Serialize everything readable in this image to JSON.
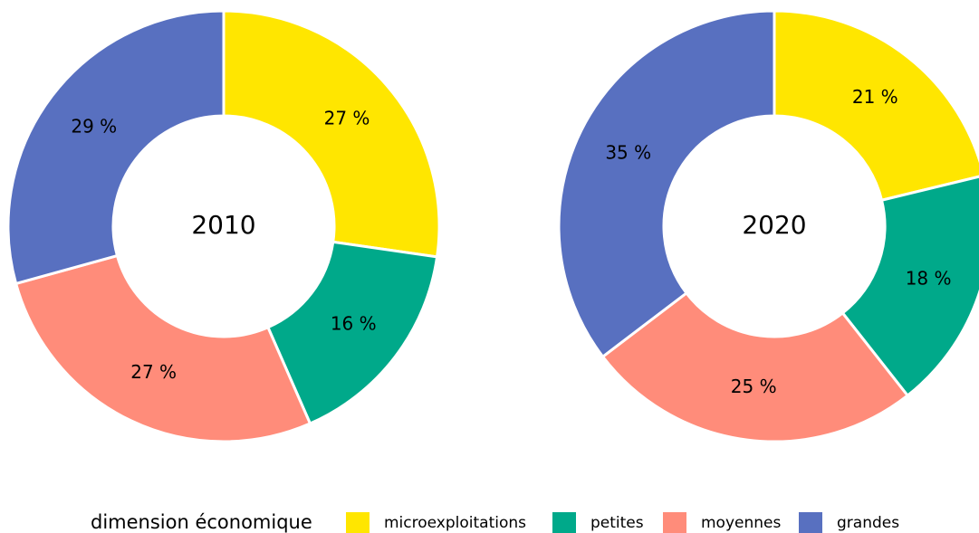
{
  "chart_data": [
    {
      "type": "pie",
      "title": "2010",
      "categories": [
        "microexploitations",
        "petites",
        "moyennes",
        "grandes"
      ],
      "values": [
        27,
        16,
        27,
        29
      ],
      "value_labels": [
        "27 %",
        "16 %",
        "27 %",
        "29 %"
      ],
      "colors": [
        "#ffe600",
        "#00a98a",
        "#ff8c7a",
        "#5870c0"
      ]
    },
    {
      "type": "pie",
      "title": "2020",
      "categories": [
        "microexploitations",
        "petites",
        "moyennes",
        "grandes"
      ],
      "values": [
        21,
        18,
        25,
        35
      ],
      "value_labels": [
        "21 %",
        "18 %",
        "25 %",
        "35 %"
      ],
      "colors": [
        "#ffe600",
        "#00a98a",
        "#ff8c7a",
        "#5870c0"
      ]
    }
  ],
  "legend_title": "dimension économique"
}
